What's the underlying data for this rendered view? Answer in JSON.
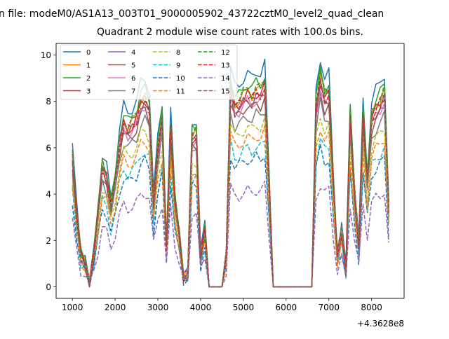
{
  "chart_data": {
    "type": "line",
    "suptitle": "n file: modeM0/AS1A13_003T01_9000005902_43722cztM0_level2_quad_clean",
    "title": "Quadrant 2 module wise count rates with 100.0s bins.",
    "xlabel": "",
    "ylabel": "",
    "x_offset_label": "+4.3628e8",
    "xlim": [
      620,
      8760
    ],
    "ylim": [
      -0.5,
      10.5
    ],
    "x_ticks": [
      1000,
      2000,
      3000,
      4000,
      5000,
      6000,
      7000,
      8000
    ],
    "y_ticks": [
      0,
      2,
      4,
      6,
      8,
      10
    ],
    "grid": false,
    "legend_position": "top-left",
    "x_start": 1000,
    "x_step": 100,
    "note": "values of each series = base_values (module 0) x scale, estimated from the plot",
    "base_values": [
      6.2,
      3.5,
      1.5,
      1.2,
      0.2,
      1.5,
      3.5,
      5.7,
      5.2,
      3.8,
      5.0,
      6.8,
      7.8,
      7.5,
      7.7,
      8.0,
      8.8,
      9.0,
      8.5,
      4.0,
      6.5,
      8.0,
      2.0,
      7.5,
      4.0,
      2.5,
      0.5,
      0.6,
      7.1,
      7.2,
      1.5,
      2.7,
      0,
      0,
      0,
      0,
      1.5,
      9.5,
      8.6,
      8.7,
      9.0,
      9.2,
      9.0,
      9.3,
      9.2,
      9.6,
      5.0,
      0,
      0,
      0,
      0,
      0,
      0,
      0,
      0,
      0,
      0,
      8.5,
      9.9,
      9.0,
      9.2,
      5.0,
      1.5,
      2.7,
      0.8,
      8.0,
      4.5,
      2.0,
      8.0,
      5.0,
      8.0,
      8.5,
      8.8,
      9.2,
      3.8
    ],
    "series": [
      {
        "name": "0",
        "scale": 1.0,
        "color": "#1f77b4",
        "dash": false
      },
      {
        "name": "1",
        "scale": 0.92,
        "color": "#ff7f0e",
        "dash": false
      },
      {
        "name": "2",
        "scale": 0.95,
        "color": "#2ca02c",
        "dash": false
      },
      {
        "name": "3",
        "scale": 0.9,
        "color": "#d62728",
        "dash": false
      },
      {
        "name": "4",
        "scale": 0.88,
        "color": "#9467bd",
        "dash": false
      },
      {
        "name": "5",
        "scale": 0.85,
        "color": "#8c564b",
        "dash": false
      },
      {
        "name": "6",
        "scale": 0.87,
        "color": "#e377c2",
        "dash": false
      },
      {
        "name": "7",
        "scale": 0.8,
        "color": "#7f7f7f",
        "dash": false
      },
      {
        "name": "8",
        "scale": 0.75,
        "color": "#bcbd22",
        "dash": true
      },
      {
        "name": "9",
        "scale": 0.65,
        "color": "#17becf",
        "dash": true
      },
      {
        "name": "10",
        "scale": 0.6,
        "color": "#1f77b4",
        "dash": true
      },
      {
        "name": "11",
        "scale": 0.7,
        "color": "#ff7f0e",
        "dash": true
      },
      {
        "name": "12",
        "scale": 0.93,
        "color": "#2ca02c",
        "dash": true
      },
      {
        "name": "13",
        "scale": 0.9,
        "color": "#d62728",
        "dash": true
      },
      {
        "name": "14",
        "scale": 0.45,
        "color": "#9467bd",
        "dash": true
      },
      {
        "name": "15",
        "scale": 0.88,
        "color": "#8c564b",
        "dash": true
      }
    ]
  }
}
